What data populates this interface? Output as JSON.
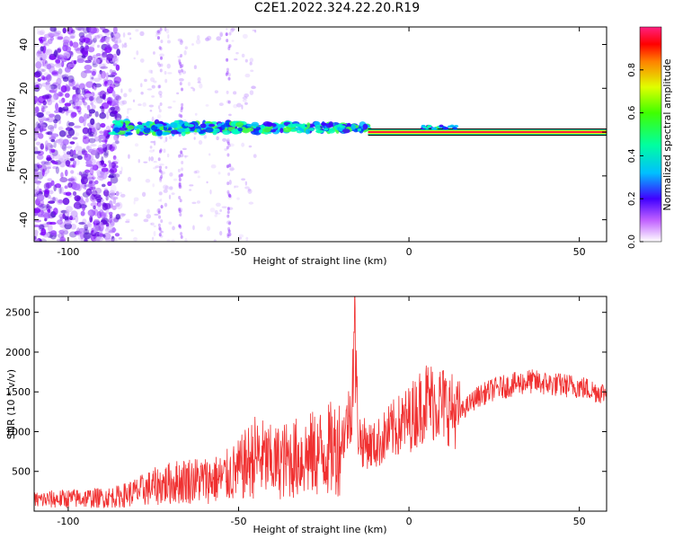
{
  "title": "C2E1.2022.324.22.20.R19",
  "chart_data": [
    {
      "type": "heatmap",
      "xlabel": "Height of straight line (km)",
      "ylabel": "Frequency (Hz)",
      "xlim": [
        -110,
        58
      ],
      "ylim": [
        -50,
        48
      ],
      "x_ticks": [
        -100,
        -50,
        0,
        50
      ],
      "y_ticks": [
        -40,
        -20,
        0,
        20,
        40
      ],
      "colorbar": {
        "label": "Normalized spectral amplitude",
        "range": [
          0,
          1
        ],
        "ticks": [
          "0.0",
          "0.2",
          "0.4",
          "0.6",
          "0.8"
        ]
      },
      "features": {
        "band_center_hz": 0,
        "noisy_scatter_region_km": [
          -110,
          -85
        ],
        "broad_band_region_km": [
          -87,
          -12
        ],
        "narrow_line_start_km": -12,
        "line_end_km": 58
      }
    },
    {
      "type": "line",
      "xlabel": "Height of straight line (km)",
      "ylabel": "SNR (10 * v/v)",
      "xlim": [
        -110,
        58
      ],
      "ylim": [
        0,
        2700
      ],
      "x_ticks": [
        -100,
        -50,
        0,
        50
      ],
      "y_ticks": [
        500,
        1000,
        1500,
        2000,
        2500
      ],
      "series": [
        {
          "color": "#f03030",
          "x": [
            -110,
            -100,
            -90,
            -85,
            -80,
            -75,
            -70,
            -65,
            -60,
            -55,
            -50,
            -45,
            -40,
            -35,
            -30,
            -25,
            -20,
            -17,
            -16,
            -15,
            -14,
            -10,
            -5,
            0,
            5,
            10,
            15,
            20,
            25,
            30,
            35,
            40,
            45,
            50,
            55,
            58
          ],
          "y": [
            150,
            170,
            180,
            200,
            260,
            330,
            380,
            420,
            420,
            440,
            550,
            750,
            650,
            700,
            750,
            800,
            900,
            1300,
            2400,
            1100,
            900,
            850,
            1050,
            1200,
            1450,
            1400,
            1250,
            1450,
            1550,
            1600,
            1650,
            1620,
            1600,
            1580,
            1520,
            1500
          ]
        }
      ]
    }
  ]
}
